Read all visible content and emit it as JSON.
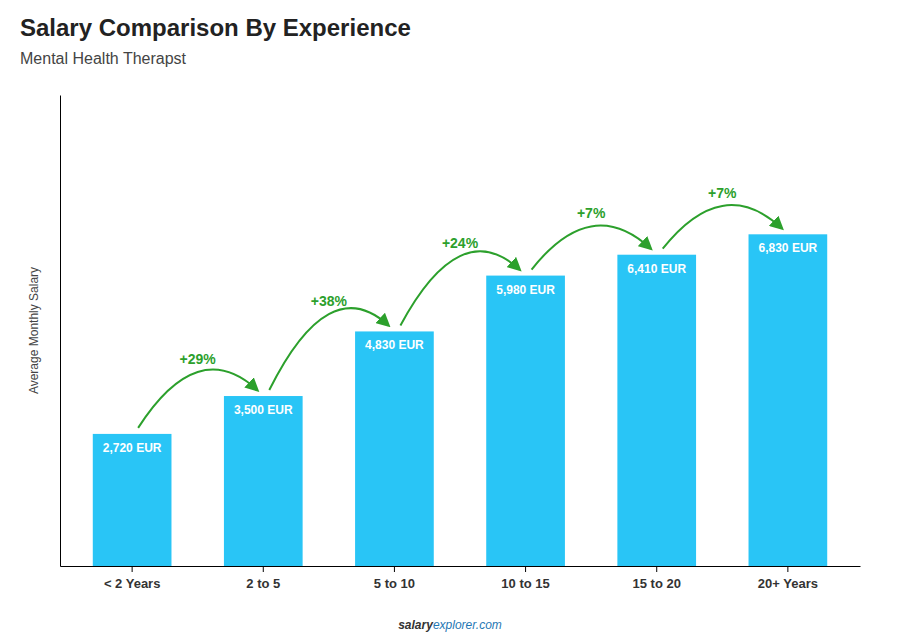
{
  "chart_data": {
    "type": "bar",
    "title": "Salary Comparison By Experience",
    "subtitle": "Mental Health Therapst",
    "categories": [
      "< 2 Years",
      "2 to 5",
      "5 to 10",
      "10 to 15",
      "15 to 20",
      "20+ Years"
    ],
    "values": [
      2720,
      3500,
      4830,
      5980,
      6410,
      6830
    ],
    "value_labels": [
      "2,720 EUR",
      "3,500 EUR",
      "4,830 EUR",
      "5,980 EUR",
      "6,410 EUR",
      "6,830 EUR"
    ],
    "data_labels": true,
    "annotations": [
      "+29%",
      "+38%",
      "+24%",
      "+7%",
      "+7%"
    ],
    "ylabel": "Average Monthly Salary",
    "footer": [
      "salary",
      "explorer.com"
    ],
    "color": "#29c5f6",
    "ylim": [
      0,
      9698.6
    ],
    "tick_labels": "x",
    "grid": false
  }
}
